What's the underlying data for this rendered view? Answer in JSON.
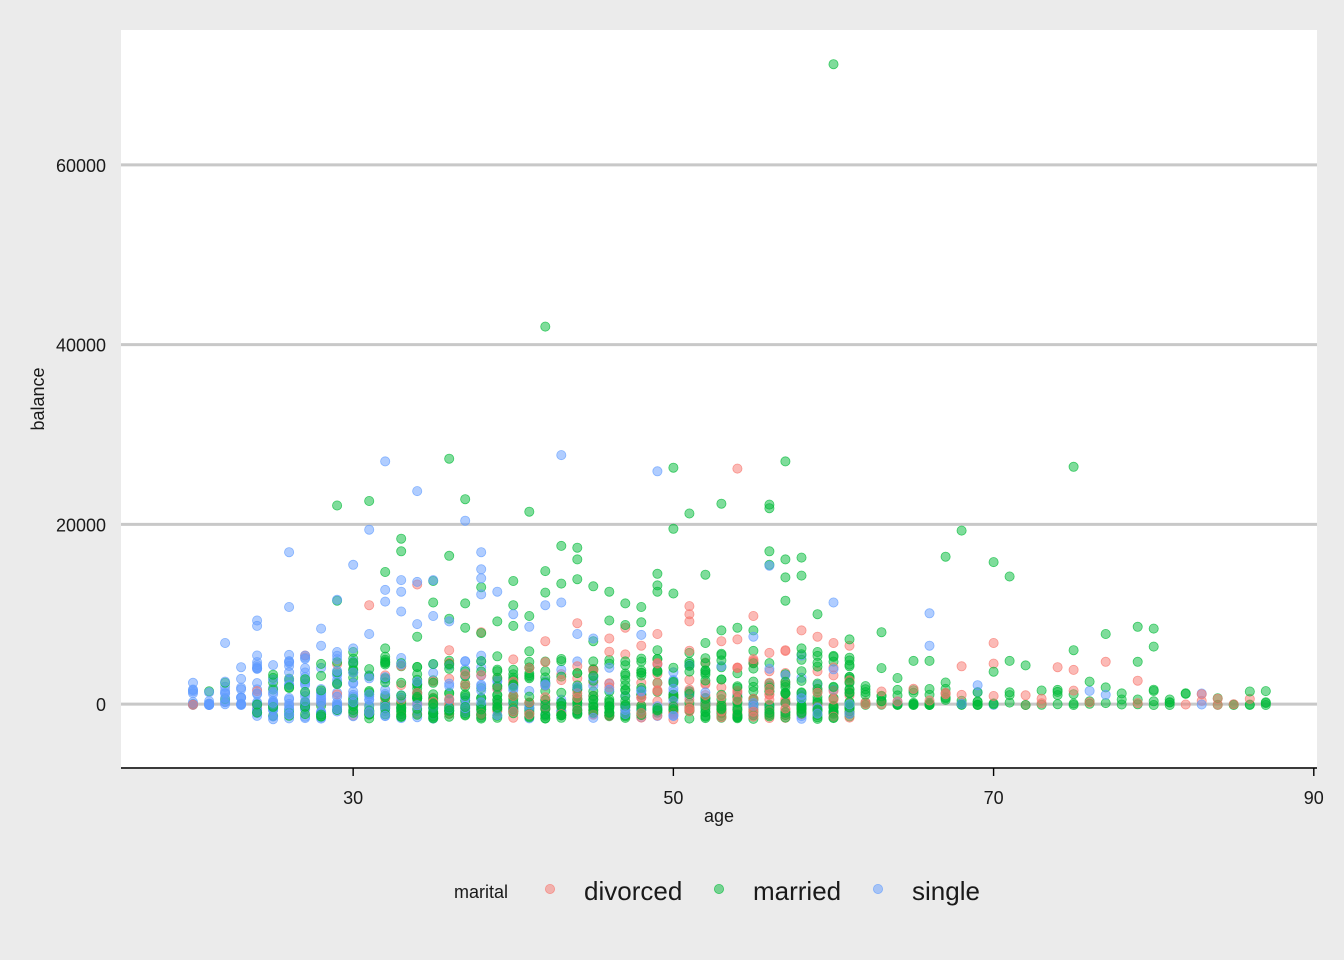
{
  "chart_data": {
    "type": "scatter",
    "title": "",
    "xlabel": "age",
    "ylabel": "balance",
    "xlim": [
      15.5,
      90.2
    ],
    "ylim": [
      -7000,
      75000
    ],
    "x_ticks": [
      30,
      50,
      70,
      90
    ],
    "y_ticks": [
      0,
      20000,
      40000,
      60000
    ],
    "grid": "horizontal major lines",
    "legend_title": "marital",
    "legend_position": "bottom",
    "series": [
      {
        "name": "divorced",
        "color": "#F8766D",
        "points": [
          [
            31,
            11000
          ],
          [
            34,
            13300
          ],
          [
            36,
            6000
          ],
          [
            38,
            8000
          ],
          [
            41,
            4000
          ],
          [
            42,
            7000
          ],
          [
            44,
            9000
          ],
          [
            46,
            7300
          ],
          [
            47,
            8500
          ],
          [
            48,
            6500
          ],
          [
            49,
            7800
          ],
          [
            51,
            10900
          ],
          [
            51,
            10000
          ],
          [
            51,
            9200
          ],
          [
            53,
            7000
          ],
          [
            54,
            26200
          ],
          [
            54,
            7200
          ],
          [
            55,
            9800
          ],
          [
            55,
            5000
          ],
          [
            57,
            6000
          ],
          [
            58,
            8200
          ],
          [
            59,
            7500
          ],
          [
            60,
            6800
          ],
          [
            61,
            6500
          ],
          [
            63,
            1400
          ],
          [
            65,
            1700
          ],
          [
            68,
            4200
          ],
          [
            70,
            6800
          ],
          [
            70,
            4500
          ],
          [
            74,
            4100
          ],
          [
            75,
            1500
          ],
          [
            75,
            3800
          ],
          [
            76,
            200
          ],
          [
            77,
            4700
          ],
          [
            79,
            2600
          ],
          [
            83,
            1100
          ],
          [
            84,
            600
          ],
          [
            36,
            600
          ],
          [
            40,
            900
          ],
          [
            44,
            1200
          ],
          [
            48,
            700
          ],
          [
            52,
            1000
          ],
          [
            56,
            1100
          ],
          [
            60,
            500
          ],
          [
            64,
            300
          ],
          [
            66,
            400
          ],
          [
            70,
            900
          ],
          [
            73,
            600
          ]
        ]
      },
      {
        "name": "married",
        "color": "#00BA38",
        "points": [
          [
            29,
            22100
          ],
          [
            29,
            11500
          ],
          [
            31,
            22600
          ],
          [
            32,
            14700
          ],
          [
            33,
            18400
          ],
          [
            33,
            17000
          ],
          [
            35,
            13700
          ],
          [
            35,
            11300
          ],
          [
            36,
            27300
          ],
          [
            36,
            16500
          ],
          [
            37,
            22800
          ],
          [
            37,
            11200
          ],
          [
            38,
            13000
          ],
          [
            40,
            13700
          ],
          [
            40,
            11000
          ],
          [
            41,
            21400
          ],
          [
            42,
            42000
          ],
          [
            42,
            14800
          ],
          [
            42,
            12400
          ],
          [
            43,
            17600
          ],
          [
            43,
            13400
          ],
          [
            44,
            17400
          ],
          [
            44,
            16100
          ],
          [
            44,
            13900
          ],
          [
            45,
            13100
          ],
          [
            46,
            12500
          ],
          [
            47,
            11200
          ],
          [
            48,
            10800
          ],
          [
            49,
            14500
          ],
          [
            49,
            13200
          ],
          [
            49,
            12500
          ],
          [
            50,
            26300
          ],
          [
            50,
            19500
          ],
          [
            50,
            12300
          ],
          [
            51,
            21200
          ],
          [
            52,
            14400
          ],
          [
            53,
            22300
          ],
          [
            54,
            8500
          ],
          [
            55,
            8200
          ],
          [
            56,
            22200
          ],
          [
            56,
            21800
          ],
          [
            56,
            17000
          ],
          [
            56,
            15500
          ],
          [
            57,
            27000
          ],
          [
            57,
            16100
          ],
          [
            57,
            14100
          ],
          [
            57,
            11500
          ],
          [
            58,
            16300
          ],
          [
            58,
            14300
          ],
          [
            59,
            10000
          ],
          [
            60,
            71200
          ],
          [
            61,
            7200
          ],
          [
            62,
            2000
          ],
          [
            63,
            8000
          ],
          [
            63,
            4000
          ],
          [
            64,
            2900
          ],
          [
            65,
            4800
          ],
          [
            66,
            4800
          ],
          [
            67,
            16400
          ],
          [
            67,
            2400
          ],
          [
            68,
            19300
          ],
          [
            70,
            15800
          ],
          [
            70,
            3600
          ],
          [
            71,
            14200
          ],
          [
            71,
            4800
          ],
          [
            72,
            4300
          ],
          [
            74,
            1000
          ],
          [
            75,
            26400
          ],
          [
            75,
            6000
          ],
          [
            76,
            2500
          ],
          [
            77,
            7800
          ],
          [
            79,
            8600
          ],
          [
            79,
            4700
          ],
          [
            80,
            8400
          ],
          [
            80,
            6400
          ],
          [
            80,
            1600
          ],
          [
            81,
            200
          ],
          [
            86,
            1400
          ],
          [
            87,
            200
          ],
          [
            37,
            8500
          ],
          [
            38,
            7900
          ],
          [
            39,
            9200
          ],
          [
            40,
            8700
          ],
          [
            41,
            9800
          ],
          [
            45,
            7000
          ],
          [
            47,
            8800
          ],
          [
            52,
            6800
          ],
          [
            53,
            8200
          ],
          [
            58,
            6200
          ],
          [
            59,
            5800
          ],
          [
            30,
            5800
          ],
          [
            32,
            6200
          ],
          [
            34,
            7500
          ],
          [
            36,
            9500
          ],
          [
            46,
            9300
          ],
          [
            48,
            9100
          ]
        ]
      },
      {
        "name": "single",
        "color": "#619CFF",
        "points": [
          [
            20,
            1200
          ],
          [
            21,
            1300
          ],
          [
            22,
            6800
          ],
          [
            22,
            2500
          ],
          [
            23,
            4100
          ],
          [
            23,
            2800
          ],
          [
            24,
            9300
          ],
          [
            24,
            8700
          ],
          [
            26,
            16900
          ],
          [
            26,
            10800
          ],
          [
            26,
            4600
          ],
          [
            27,
            5400
          ],
          [
            28,
            8400
          ],
          [
            28,
            6500
          ],
          [
            29,
            11600
          ],
          [
            29,
            5800
          ],
          [
            30,
            15500
          ],
          [
            30,
            6200
          ],
          [
            31,
            19400
          ],
          [
            31,
            7800
          ],
          [
            32,
            27000
          ],
          [
            32,
            12700
          ],
          [
            32,
            11400
          ],
          [
            33,
            13800
          ],
          [
            33,
            12500
          ],
          [
            33,
            10300
          ],
          [
            34,
            23700
          ],
          [
            34,
            13600
          ],
          [
            34,
            8900
          ],
          [
            35,
            13800
          ],
          [
            35,
            9800
          ],
          [
            36,
            9200
          ],
          [
            37,
            20400
          ],
          [
            38,
            16900
          ],
          [
            38,
            15000
          ],
          [
            38,
            14000
          ],
          [
            38,
            12200
          ],
          [
            39,
            12500
          ],
          [
            40,
            10000
          ],
          [
            41,
            8600
          ],
          [
            42,
            11000
          ],
          [
            43,
            27700
          ],
          [
            43,
            11300
          ],
          [
            44,
            7800
          ],
          [
            45,
            7300
          ],
          [
            48,
            7700
          ],
          [
            49,
            25900
          ],
          [
            55,
            7500
          ],
          [
            56,
            15400
          ],
          [
            60,
            11300
          ],
          [
            66,
            10100
          ],
          [
            66,
            6500
          ],
          [
            69,
            2100
          ],
          [
            30,
            3500
          ],
          [
            32,
            3000
          ],
          [
            34,
            2500
          ],
          [
            36,
            2000
          ],
          [
            38,
            1500
          ],
          [
            40,
            1800
          ],
          [
            42,
            2200
          ],
          [
            44,
            1900
          ],
          [
            46,
            1600
          ],
          [
            48,
            1400
          ],
          [
            50,
            1700
          ],
          [
            52,
            1300
          ]
        ]
      }
    ],
    "dense_band": {
      "note": "many overlapping points between balance -2500 and 6000",
      "x_min": 20,
      "x_max": 61,
      "secondary_x_min": 61,
      "secondary_x_max": 87
    }
  }
}
